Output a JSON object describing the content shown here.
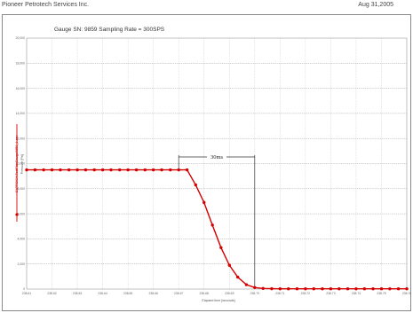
{
  "header": {
    "company": "Pioneer Petrotech Services Inc.",
    "date": "Aug 31,2005"
  },
  "chart_data": {
    "type": "line",
    "title": "Gauge SN: 9859   Sampling Rate = 300SPS",
    "xlabel": "Elapsed time [seconds]",
    "ylabel": "Pressure [Psi]",
    "legend": {
      "label": "C:\\PPSICA\\TestFile\\Gauge9859_1.csv",
      "placement": "left"
    },
    "xlim": [
      238.61,
      238.76
    ],
    "ylim": [
      0,
      20000
    ],
    "x_ticks": [
      "238.61",
      "238.62",
      "238.63",
      "238.64",
      "238.65",
      "238.66",
      "238.67",
      "238.68",
      "238.69",
      "238.70",
      "238.71",
      "238.72",
      "238.73",
      "238.74",
      "238.75",
      "238.76"
    ],
    "y_ticks": [
      "0",
      "2,000",
      "4,000",
      "6,000",
      "8,000",
      "10,000",
      "12,000",
      "14,000",
      "16,000",
      "18,000",
      "20,000"
    ],
    "grid": true,
    "color": "#d40000",
    "series": [
      {
        "x": [
          238.61,
          238.6133,
          238.6167,
          238.62,
          238.6233,
          238.6267,
          238.63,
          238.6333,
          238.6367,
          238.64,
          238.6433,
          238.6467,
          238.65,
          238.6533,
          238.6567,
          238.66,
          238.6633,
          238.6667,
          238.67,
          238.6733,
          238.6767,
          238.68,
          238.6833,
          238.6867,
          238.69,
          238.6933,
          238.6967,
          238.7,
          238.7033,
          238.7067,
          238.71,
          238.7133,
          238.7167,
          238.72,
          238.7233,
          238.7267,
          238.73,
          238.7333,
          238.7367,
          238.74,
          238.7433,
          238.7467,
          238.75,
          238.7533,
          238.7567,
          238.76
        ],
        "y": [
          9500,
          9500,
          9500,
          9500,
          9500,
          9500,
          9500,
          9500,
          9500,
          9500,
          9500,
          9500,
          9500,
          9500,
          9500,
          9500,
          9500,
          9500,
          9500,
          9500,
          8300,
          6900,
          5100,
          3300,
          1900,
          950,
          350,
          120,
          50,
          30,
          20,
          20,
          20,
          20,
          20,
          20,
          20,
          20,
          20,
          20,
          20,
          20,
          20,
          20,
          20,
          20
        ]
      }
    ],
    "annotations": [
      {
        "label": "30ms",
        "x_start": 238.67,
        "x_end": 238.7
      }
    ]
  }
}
